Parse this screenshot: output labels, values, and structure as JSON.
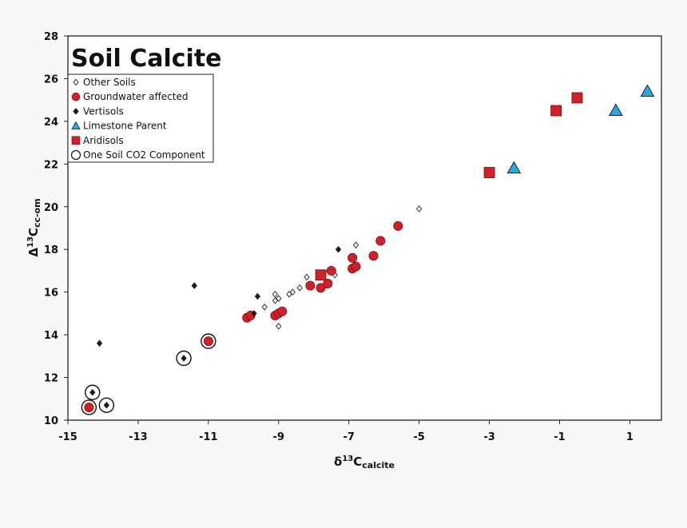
{
  "chart_data": {
    "type": "scatter",
    "title": "Soil Calcite",
    "xlabel": {
      "prefix": "δ",
      "sup": "13",
      "main": "C",
      "sub": "calcite"
    },
    "ylabel": {
      "prefix": "Δ",
      "sup": "13",
      "main": "C",
      "sub": "cc-om"
    },
    "xlim": [
      -15,
      1.9
    ],
    "ylim": [
      10,
      28
    ],
    "xticks": [
      -15,
      -13,
      -11,
      -9,
      -7,
      -5,
      -3,
      -1,
      1
    ],
    "yticks": [
      10,
      12,
      14,
      16,
      18,
      20,
      22,
      24,
      26,
      28
    ],
    "legend_position": "top-left",
    "legend": [
      "Other Soils",
      "Groundwater affected",
      "Vertisols",
      "Limestone Parent",
      "Aridisols",
      "One Soil CO2 Component"
    ],
    "colors": {
      "red": "#d0202a",
      "blue": "#29a9e0",
      "black": "#1a1a1a"
    },
    "series": [
      {
        "name": "Other Soils",
        "marker": "diamond-open",
        "points": [
          [
            -9.1,
            15.6
          ],
          [
            -9.0,
            15.7
          ],
          [
            -9.1,
            15.9
          ],
          [
            -8.7,
            15.9
          ],
          [
            -8.6,
            16.0
          ],
          [
            -8.4,
            16.2
          ],
          [
            -8.2,
            16.7
          ],
          [
            -9.4,
            15.3
          ],
          [
            -9.0,
            14.4
          ],
          [
            -7.4,
            16.8
          ],
          [
            -6.8,
            18.2
          ],
          [
            -5.0,
            19.9
          ]
        ]
      },
      {
        "name": "Groundwater affected",
        "marker": "circle-red",
        "points": [
          [
            -14.4,
            10.6
          ],
          [
            -11.0,
            13.7
          ],
          [
            -9.9,
            14.8
          ],
          [
            -9.8,
            14.9
          ],
          [
            -9.1,
            14.9
          ],
          [
            -9.0,
            15.0
          ],
          [
            -8.9,
            15.1
          ],
          [
            -8.1,
            16.3
          ],
          [
            -7.8,
            16.2
          ],
          [
            -7.6,
            16.4
          ],
          [
            -7.5,
            17.0
          ],
          [
            -6.9,
            17.6
          ],
          [
            -6.9,
            17.1
          ],
          [
            -6.8,
            17.2
          ],
          [
            -6.3,
            17.7
          ],
          [
            -6.1,
            18.4
          ],
          [
            -5.6,
            19.1
          ]
        ]
      },
      {
        "name": "Vertisols",
        "marker": "diamond-filled",
        "points": [
          [
            -14.3,
            11.3
          ],
          [
            -13.9,
            10.7
          ],
          [
            -14.1,
            13.6
          ],
          [
            -11.7,
            12.9
          ],
          [
            -11.4,
            16.3
          ],
          [
            -9.6,
            15.8
          ],
          [
            -9.7,
            15.0
          ],
          [
            -7.3,
            18.0
          ]
        ]
      },
      {
        "name": "Limestone Parent",
        "marker": "triangle-blue",
        "points": [
          [
            -2.3,
            21.8
          ],
          [
            0.6,
            24.5
          ],
          [
            1.5,
            25.4
          ]
        ]
      },
      {
        "name": "Aridisols",
        "marker": "square-red",
        "points": [
          [
            -7.8,
            16.8
          ],
          [
            -3.0,
            21.6
          ],
          [
            -1.1,
            24.5
          ],
          [
            -0.5,
            25.1
          ]
        ]
      },
      {
        "name": "One Soil CO2 Component",
        "marker": "circle-open",
        "points": [
          [
            -14.4,
            10.6
          ],
          [
            -14.3,
            11.3
          ],
          [
            -13.9,
            10.7
          ],
          [
            -11.7,
            12.9
          ],
          [
            -11.0,
            13.7
          ]
        ]
      }
    ]
  }
}
